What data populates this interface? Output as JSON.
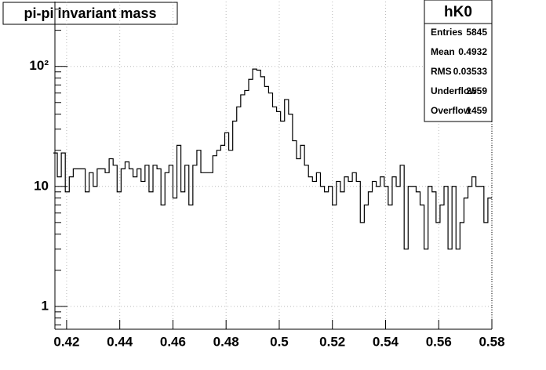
{
  "chart_data": {
    "type": "histogram",
    "title": "pi-pi invariant mass",
    "bins": [
      0.415,
      0.4165,
      0.418,
      0.4195,
      0.421,
      0.4225,
      0.424,
      0.4255,
      0.427,
      0.4285,
      0.43,
      0.4315,
      0.433,
      0.4345,
      0.436,
      0.4375,
      0.439,
      0.4405,
      0.442,
      0.4435,
      0.445,
      0.4465,
      0.448,
      0.4495,
      0.451,
      0.4525,
      0.454,
      0.4555,
      0.457,
      0.4585,
      0.46,
      0.4615,
      0.463,
      0.4645,
      0.466,
      0.4675,
      0.469,
      0.4705,
      0.472,
      0.4735,
      0.475,
      0.4765,
      0.478,
      0.4795,
      0.481,
      0.4825,
      0.484,
      0.4855,
      0.487,
      0.4885,
      0.49,
      0.4915,
      0.493,
      0.4945,
      0.496,
      0.4975,
      0.499,
      0.5005,
      0.502,
      0.5035,
      0.505,
      0.5065,
      0.508,
      0.5095,
      0.511,
      0.5125,
      0.514,
      0.5155,
      0.517,
      0.5185,
      0.52,
      0.5215,
      0.523,
      0.5245,
      0.526,
      0.5275,
      0.529,
      0.5305,
      0.532,
      0.5335,
      0.535,
      0.5365,
      0.538,
      0.5395,
      0.541,
      0.5425,
      0.544,
      0.5455,
      0.547,
      0.5485,
      0.55,
      0.5515,
      0.553,
      0.5545,
      0.556,
      0.5575,
      0.559,
      0.5605,
      0.562,
      0.5635,
      0.565,
      0.5665,
      0.568,
      0.5695,
      0.571,
      0.5725,
      0.574,
      0.5755,
      0.577,
      0.5785,
      0.58
    ],
    "values": [
      19,
      12,
      19,
      9,
      12,
      14,
      14,
      14,
      9,
      13,
      10,
      14,
      14,
      13,
      17,
      15,
      9,
      14,
      16,
      14,
      12,
      14,
      11,
      15,
      9,
      15,
      14,
      7,
      13,
      15,
      8,
      22,
      9,
      15,
      7,
      15,
      20,
      13,
      13,
      13,
      18,
      20,
      22,
      28,
      20,
      35,
      46,
      58,
      63,
      78,
      95,
      93,
      82,
      68,
      60,
      46,
      42,
      35,
      53,
      40,
      24,
      17,
      22,
      15,
      12,
      11,
      13,
      10,
      9,
      10,
      7,
      11,
      9,
      12,
      11,
      13,
      11,
      5,
      7,
      9,
      11,
      10,
      12,
      10,
      7,
      12,
      10,
      15,
      3,
      10,
      10,
      9,
      7,
      3,
      10,
      9,
      5,
      7,
      10,
      3,
      10,
      3,
      5,
      8,
      10,
      12,
      10,
      10,
      5,
      8
    ],
    "color": "#000000",
    "xlim": [
      0.4156,
      0.58
    ],
    "xticks": [
      0.42,
      0.44,
      0.46,
      0.48,
      0.5,
      0.52,
      0.54,
      0.56,
      0.58
    ],
    "ylim": [
      0.645,
      347
    ],
    "yticks": [
      1,
      10,
      {
        "value": 100,
        "label": "10²"
      }
    ],
    "ylog": true,
    "grid": true,
    "stats": {
      "name": "hK0",
      "rows": [
        [
          "Entries",
          "5845"
        ],
        [
          "Mean",
          "0.4932"
        ],
        [
          "RMS",
          "0.03533"
        ],
        [
          "Underflow",
          "2559"
        ],
        [
          "Overflow",
          "1459"
        ]
      ]
    }
  }
}
